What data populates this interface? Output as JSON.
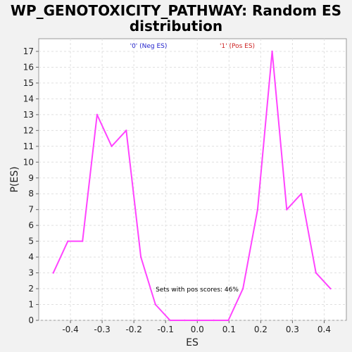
{
  "chart_data": {
    "type": "line",
    "title_lines": [
      "WP_GENOTOXICITY_PATHWAY: Random ES",
      "distribution"
    ],
    "xlabel": "ES",
    "ylabel": "P(ES)",
    "xlim": [
      -0.5,
      0.47
    ],
    "ylim": [
      0,
      17.8
    ],
    "x_ticks": [
      -0.4,
      -0.3,
      -0.2,
      -0.1,
      0.0,
      0.1,
      0.2,
      0.3,
      0.4
    ],
    "x_tick_labels": [
      "-0.4",
      "-0.3",
      "-0.2",
      "-0.1",
      "0.0",
      "0.1",
      "0.2",
      "0.3",
      "0.4"
    ],
    "y_ticks": [
      0,
      1,
      2,
      3,
      4,
      5,
      6,
      7,
      8,
      9,
      10,
      11,
      12,
      13,
      14,
      15,
      16,
      17
    ],
    "y_tick_labels": [
      "0",
      "1",
      "2",
      "3",
      "4",
      "5",
      "6",
      "7",
      "8",
      "9",
      "10",
      "11",
      "12",
      "13",
      "14",
      "15",
      "16",
      "17"
    ],
    "grid": true,
    "legend": [
      {
        "label": "'0' (Neg ES)",
        "color": "#2222cc"
      },
      {
        "label": "'1' (Pos ES)",
        "color": "#cc2222"
      }
    ],
    "annotation": "Sets with pos scores: 46%",
    "series": [
      {
        "color": "#ff44ff",
        "x": [
          -0.454,
          -0.408,
          -0.362,
          -0.316,
          -0.27,
          -0.224,
          -0.178,
          -0.132,
          -0.086,
          -0.04,
          0.006,
          0.052,
          0.098,
          0.144,
          0.19,
          0.236,
          0.282,
          0.328,
          0.374,
          0.42
        ],
        "y": [
          3,
          5,
          5,
          13,
          11,
          12,
          4,
          1,
          0,
          0,
          0,
          0,
          0,
          2,
          7,
          17,
          7,
          8,
          3,
          2
        ]
      }
    ]
  }
}
